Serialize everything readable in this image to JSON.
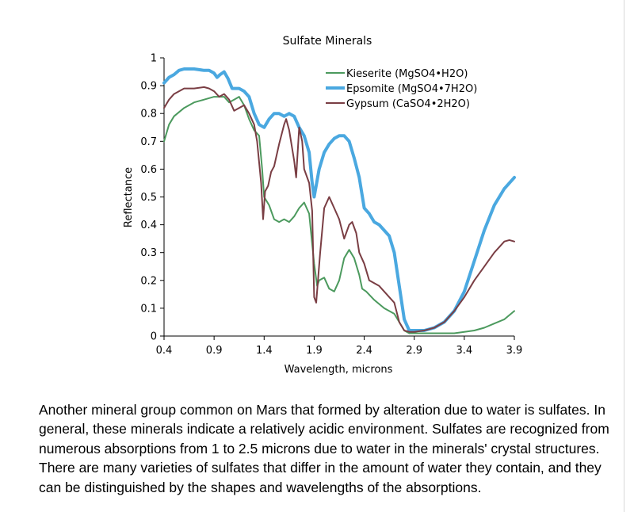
{
  "chart_data": {
    "type": "line",
    "title": "Sulfate Minerals",
    "xlabel": "Wavelength, microns",
    "ylabel": "Reflectance",
    "xlim": [
      0.4,
      3.9
    ],
    "ylim": [
      0,
      1
    ],
    "x_ticks": [
      "0.4",
      "0.9",
      "1.4",
      "1.9",
      "2.4",
      "2.9",
      "3.4",
      "3.9"
    ],
    "y_ticks": [
      "0",
      "0.1",
      "0.2",
      "0.3",
      "0.4",
      "0.5",
      "0.6",
      "0.7",
      "0.8",
      "0.9",
      "1"
    ],
    "grid": false,
    "legend": "top-right",
    "series": [
      {
        "name": "Kieserite (MgSO4•H2O)",
        "color": "#4c9a5e",
        "points": [
          [
            0.4,
            0.7
          ],
          [
            0.45,
            0.76
          ],
          [
            0.5,
            0.79
          ],
          [
            0.6,
            0.82
          ],
          [
            0.7,
            0.84
          ],
          [
            0.8,
            0.85
          ],
          [
            0.9,
            0.86
          ],
          [
            1.0,
            0.86
          ],
          [
            1.05,
            0.84
          ],
          [
            1.1,
            0.85
          ],
          [
            1.15,
            0.86
          ],
          [
            1.2,
            0.83
          ],
          [
            1.25,
            0.78
          ],
          [
            1.3,
            0.74
          ],
          [
            1.35,
            0.72
          ],
          [
            1.38,
            0.6
          ],
          [
            1.4,
            0.5
          ],
          [
            1.45,
            0.47
          ],
          [
            1.5,
            0.42
          ],
          [
            1.55,
            0.41
          ],
          [
            1.6,
            0.42
          ],
          [
            1.65,
            0.41
          ],
          [
            1.7,
            0.43
          ],
          [
            1.75,
            0.46
          ],
          [
            1.8,
            0.48
          ],
          [
            1.85,
            0.44
          ],
          [
            1.9,
            0.26
          ],
          [
            1.93,
            0.18
          ],
          [
            1.95,
            0.2
          ],
          [
            2.0,
            0.21
          ],
          [
            2.05,
            0.17
          ],
          [
            2.1,
            0.16
          ],
          [
            2.15,
            0.2
          ],
          [
            2.2,
            0.28
          ],
          [
            2.25,
            0.31
          ],
          [
            2.3,
            0.28
          ],
          [
            2.35,
            0.22
          ],
          [
            2.38,
            0.17
          ],
          [
            2.42,
            0.16
          ],
          [
            2.5,
            0.13
          ],
          [
            2.6,
            0.1
          ],
          [
            2.7,
            0.08
          ],
          [
            2.75,
            0.05
          ],
          [
            2.8,
            0.02
          ],
          [
            2.85,
            0.01
          ],
          [
            2.9,
            0.01
          ],
          [
            3.0,
            0.01
          ],
          [
            3.1,
            0.01
          ],
          [
            3.2,
            0.01
          ],
          [
            3.3,
            0.01
          ],
          [
            3.4,
            0.015
          ],
          [
            3.5,
            0.02
          ],
          [
            3.6,
            0.03
          ],
          [
            3.7,
            0.045
          ],
          [
            3.8,
            0.06
          ],
          [
            3.9,
            0.09
          ]
        ]
      },
      {
        "name": "Epsomite (MgSO4•7H2O)",
        "color": "#4aa8e0",
        "points": [
          [
            0.4,
            0.91
          ],
          [
            0.45,
            0.93
          ],
          [
            0.5,
            0.94
          ],
          [
            0.55,
            0.955
          ],
          [
            0.6,
            0.96
          ],
          [
            0.7,
            0.96
          ],
          [
            0.8,
            0.955
          ],
          [
            0.85,
            0.955
          ],
          [
            0.9,
            0.945
          ],
          [
            0.93,
            0.93
          ],
          [
            0.96,
            0.94
          ],
          [
            1.0,
            0.95
          ],
          [
            1.04,
            0.925
          ],
          [
            1.08,
            0.89
          ],
          [
            1.15,
            0.89
          ],
          [
            1.2,
            0.88
          ],
          [
            1.25,
            0.86
          ],
          [
            1.3,
            0.8
          ],
          [
            1.35,
            0.76
          ],
          [
            1.4,
            0.75
          ],
          [
            1.45,
            0.78
          ],
          [
            1.5,
            0.8
          ],
          [
            1.55,
            0.8
          ],
          [
            1.6,
            0.79
          ],
          [
            1.65,
            0.8
          ],
          [
            1.7,
            0.79
          ],
          [
            1.75,
            0.75
          ],
          [
            1.8,
            0.72
          ],
          [
            1.85,
            0.66
          ],
          [
            1.88,
            0.55
          ],
          [
            1.9,
            0.5
          ],
          [
            1.95,
            0.6
          ],
          [
            2.0,
            0.66
          ],
          [
            2.05,
            0.69
          ],
          [
            2.1,
            0.71
          ],
          [
            2.15,
            0.72
          ],
          [
            2.2,
            0.72
          ],
          [
            2.25,
            0.7
          ],
          [
            2.3,
            0.64
          ],
          [
            2.35,
            0.57
          ],
          [
            2.4,
            0.46
          ],
          [
            2.45,
            0.44
          ],
          [
            2.5,
            0.41
          ],
          [
            2.55,
            0.4
          ],
          [
            2.6,
            0.38
          ],
          [
            2.65,
            0.36
          ],
          [
            2.7,
            0.3
          ],
          [
            2.75,
            0.18
          ],
          [
            2.8,
            0.06
          ],
          [
            2.85,
            0.02
          ],
          [
            2.9,
            0.02
          ],
          [
            3.0,
            0.02
          ],
          [
            3.1,
            0.03
          ],
          [
            3.2,
            0.05
          ],
          [
            3.3,
            0.09
          ],
          [
            3.4,
            0.16
          ],
          [
            3.5,
            0.27
          ],
          [
            3.6,
            0.38
          ],
          [
            3.7,
            0.47
          ],
          [
            3.8,
            0.53
          ],
          [
            3.9,
            0.57
          ]
        ]
      },
      {
        "name": "Gypsum (CaSO4•2H2O)",
        "color": "#7a3e44",
        "points": [
          [
            0.4,
            0.82
          ],
          [
            0.45,
            0.85
          ],
          [
            0.5,
            0.87
          ],
          [
            0.6,
            0.89
          ],
          [
            0.7,
            0.89
          ],
          [
            0.8,
            0.895
          ],
          [
            0.85,
            0.89
          ],
          [
            0.9,
            0.88
          ],
          [
            0.95,
            0.86
          ],
          [
            1.0,
            0.87
          ],
          [
            1.05,
            0.85
          ],
          [
            1.1,
            0.81
          ],
          [
            1.15,
            0.82
          ],
          [
            1.2,
            0.83
          ],
          [
            1.25,
            0.8
          ],
          [
            1.3,
            0.76
          ],
          [
            1.33,
            0.7
          ],
          [
            1.37,
            0.55
          ],
          [
            1.39,
            0.42
          ],
          [
            1.41,
            0.52
          ],
          [
            1.44,
            0.54
          ],
          [
            1.47,
            0.59
          ],
          [
            1.5,
            0.61
          ],
          [
            1.55,
            0.69
          ],
          [
            1.6,
            0.76
          ],
          [
            1.62,
            0.78
          ],
          [
            1.65,
            0.74
          ],
          [
            1.7,
            0.63
          ],
          [
            1.72,
            0.57
          ],
          [
            1.75,
            0.75
          ],
          [
            1.78,
            0.7
          ],
          [
            1.8,
            0.6
          ],
          [
            1.85,
            0.55
          ],
          [
            1.88,
            0.45
          ],
          [
            1.9,
            0.14
          ],
          [
            1.92,
            0.12
          ],
          [
            1.96,
            0.3
          ],
          [
            2.0,
            0.46
          ],
          [
            2.05,
            0.5
          ],
          [
            2.1,
            0.46
          ],
          [
            2.15,
            0.42
          ],
          [
            2.2,
            0.35
          ],
          [
            2.25,
            0.4
          ],
          [
            2.28,
            0.41
          ],
          [
            2.32,
            0.37
          ],
          [
            2.35,
            0.3
          ],
          [
            2.4,
            0.26
          ],
          [
            2.45,
            0.2
          ],
          [
            2.5,
            0.19
          ],
          [
            2.55,
            0.18
          ],
          [
            2.6,
            0.16
          ],
          [
            2.7,
            0.12
          ],
          [
            2.75,
            0.05
          ],
          [
            2.8,
            0.02
          ],
          [
            2.85,
            0.015
          ],
          [
            2.9,
            0.015
          ],
          [
            3.0,
            0.02
          ],
          [
            3.1,
            0.03
          ],
          [
            3.2,
            0.05
          ],
          [
            3.3,
            0.09
          ],
          [
            3.4,
            0.14
          ],
          [
            3.5,
            0.2
          ],
          [
            3.6,
            0.25
          ],
          [
            3.7,
            0.3
          ],
          [
            3.8,
            0.34
          ],
          [
            3.85,
            0.345
          ],
          [
            3.9,
            0.34
          ]
        ]
      }
    ]
  },
  "caption": "Another mineral group common on Mars that formed by alteration due to water is sulfates. In general, these minerals indicate a relatively acidic environment. Sulfates are recognized from numerous absorptions from 1 to 2.5 microns due to water in the minerals' crystal structures. There are many varieties of sulfates that differ in the amount of water they contain, and they can be distinguished by the shapes and wavelengths of the absorptions."
}
